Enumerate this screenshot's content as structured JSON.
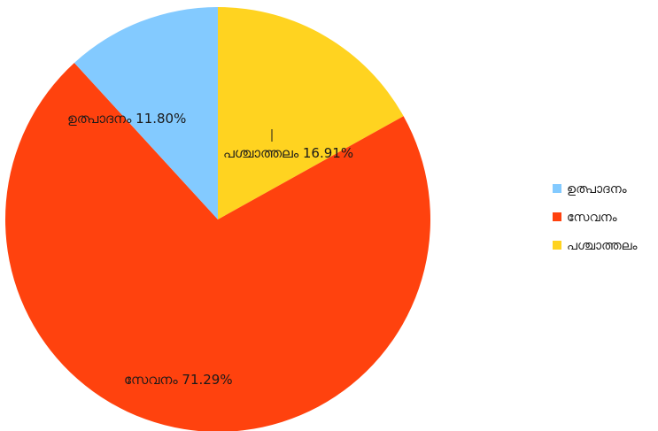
{
  "chart_data": {
    "type": "pie",
    "slices": [
      {
        "label": "പശ്ചാത്തലം",
        "value": 16.91,
        "display": "16.91%",
        "color": "#FFD320"
      },
      {
        "label": "സേവനം",
        "value": 71.29,
        "display": "71.29%",
        "color": "#FF420E"
      },
      {
        "label": "ഉത്പാദനം",
        "value": 11.8,
        "display": "11.80%",
        "color": "#83CAFF"
      }
    ],
    "legend": {
      "placement": "right",
      "entries": [
        {
          "label": "ഉത്പാദനം",
          "color": "#83CAFF"
        },
        {
          "label": "സേവനം",
          "color": "#FF420E"
        },
        {
          "label": "പശ്ചാത്തലം",
          "color": "#FFD320"
        }
      ]
    }
  }
}
